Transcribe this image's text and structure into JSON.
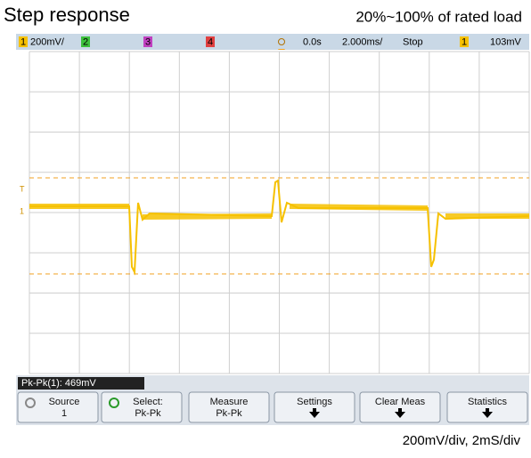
{
  "header": {
    "title": "Step response",
    "subtitle": "20%~100% of rated load"
  },
  "status_bar": [
    "1",
    "200mV/",
    "2",
    "3",
    "4",
    "0.0s",
    "2.000ms/",
    "Stop",
    "1",
    "103mV"
  ],
  "measurement": "Pk-Pk(1): 469mV",
  "softkeys": [
    {
      "label": "Source",
      "value": "1"
    },
    {
      "label": "Select:",
      "value": "Pk-Pk"
    },
    {
      "label": "Measure",
      "value": "Pk-Pk"
    },
    {
      "label": "Settings"
    },
    {
      "label": "Clear Meas"
    },
    {
      "label": "Statistics"
    }
  ],
  "footer": "200mV/div, 2mS/div"
}
